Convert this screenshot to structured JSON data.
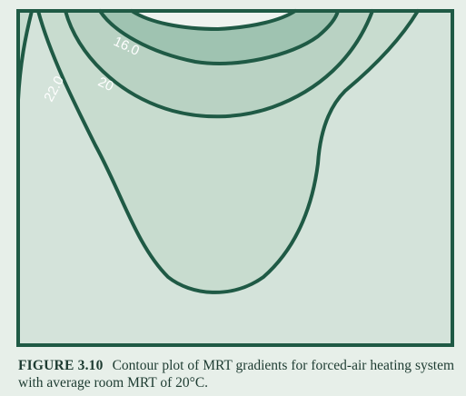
{
  "figure": {
    "label": "FIGURE 3.10",
    "caption": "Contour plot of MRT gradients for forced-air heating system with average room MRT of 20°C."
  },
  "contours": [
    {
      "label": "16.0"
    },
    {
      "label": "20"
    },
    {
      "label": "22.0"
    }
  ],
  "colors": {
    "background": "#e7efe9",
    "region_outer": "#d4e3da",
    "region_mid": "#c6dbce",
    "region_inner": "#a9c9b8",
    "region_core": "#7daf97",
    "contour_line": "#1f5a45",
    "label": "#ffffff",
    "caption_text": "#1d3b31"
  }
}
